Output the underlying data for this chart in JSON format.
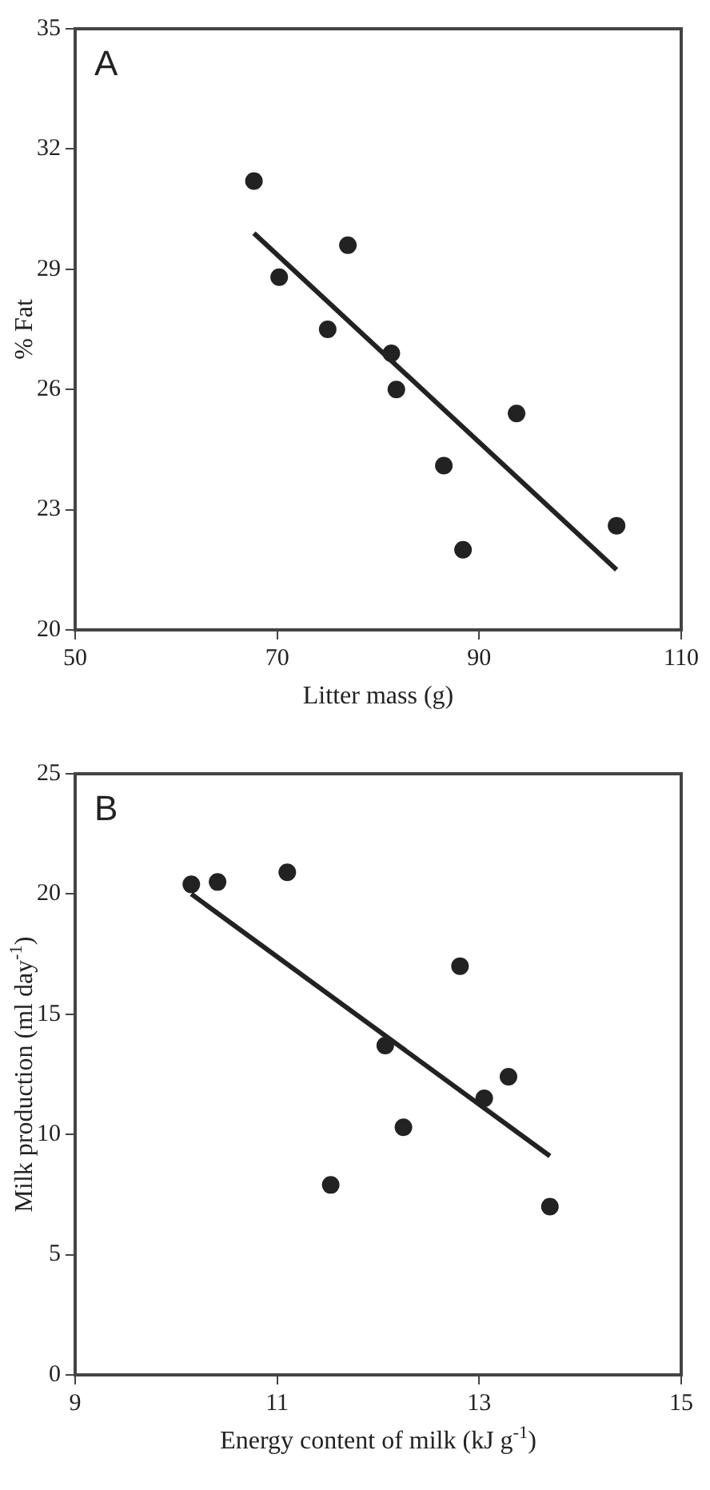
{
  "chart_data": [
    {
      "type": "scatter",
      "xlabel": "Litter mass (g)",
      "ylabel": "% Fat",
      "annotations": [
        "A"
      ],
      "xlim": [
        50,
        110
      ],
      "xticks": [
        50,
        70,
        90,
        110
      ],
      "ylim": [
        20,
        35
      ],
      "yticks": [
        20,
        23,
        26,
        29,
        32,
        35
      ],
      "grid": false,
      "legend": false,
      "marker": "circle",
      "series": [
        {
          "color": "#222222",
          "x": [
            67.7,
            70.2,
            77.0,
            75.0,
            81.3,
            81.8,
            86.5,
            88.4,
            93.7,
            103.6
          ],
          "values": [
            31.2,
            28.8,
            29.6,
            27.5,
            26.9,
            26.0,
            24.1,
            22.0,
            25.4,
            22.6
          ]
        },
        {
          "type": "line",
          "color": "#222222",
          "marker": "none",
          "line_style": "solid",
          "x": [
            67.7,
            103.6
          ],
          "values": [
            29.9,
            21.5
          ]
        }
      ]
    },
    {
      "type": "scatter",
      "xlabel": "Energy content of milk (kJ g$^{-1}$)",
      "ylabel": "Milk production (ml day$^{-1}$)",
      "annotations": [
        "B"
      ],
      "xlim": [
        9,
        15
      ],
      "xticks": [
        9,
        11,
        13,
        15
      ],
      "ylim": [
        0,
        25
      ],
      "yticks": [
        0,
        5,
        10,
        15,
        20,
        25
      ],
      "grid": false,
      "legend": false,
      "marker": "circle",
      "series": [
        {
          "color": "#222222",
          "x": [
            10.15,
            10.41,
            11.1,
            11.53,
            12.07,
            12.25,
            12.81,
            13.05,
            13.29,
            13.7
          ],
          "values": [
            20.4,
            20.5,
            20.9,
            7.9,
            13.7,
            10.3,
            17.0,
            11.5,
            12.4,
            7.0
          ]
        },
        {
          "type": "line",
          "color": "#222222",
          "marker": "none",
          "line_style": "solid",
          "x": [
            10.15,
            13.7
          ],
          "values": [
            20.0,
            9.1
          ]
        }
      ]
    }
  ]
}
